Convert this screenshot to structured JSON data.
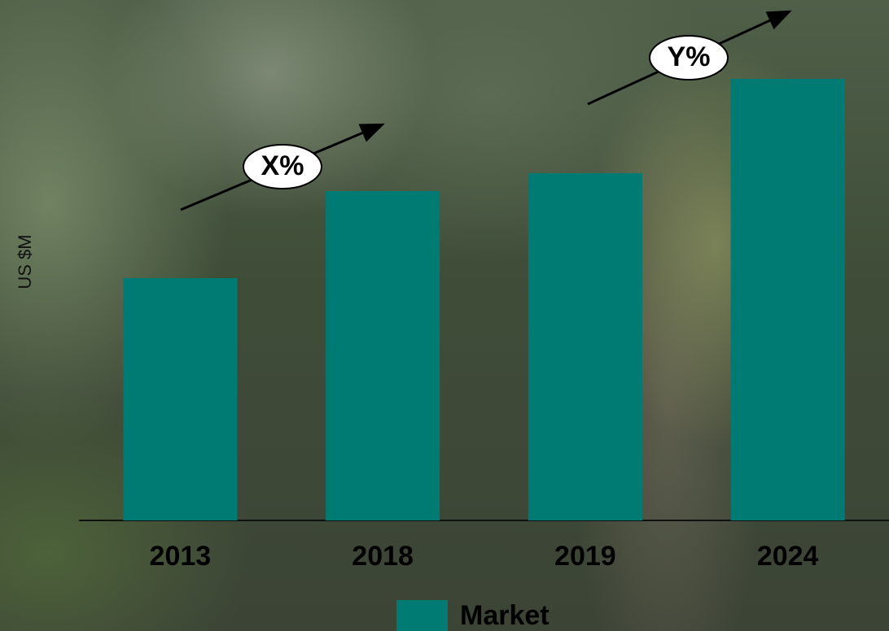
{
  "chart_data": {
    "type": "bar",
    "y_label": "US $M",
    "categories": [
      "2013",
      "2018",
      "2019",
      "2024"
    ],
    "series": [
      {
        "name": "Market",
        "color": "#007b73",
        "values": [
          298,
          405,
          427,
          543
        ]
      }
    ],
    "ylim": [
      0,
      600
    ],
    "annotations": [
      "X%",
      "Y%"
    ]
  }
}
